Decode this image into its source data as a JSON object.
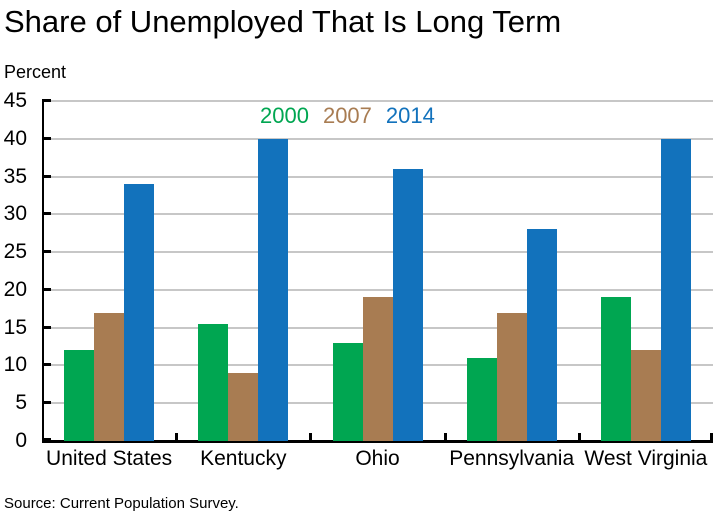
{
  "title": "Share of Unemployed That Is Long Term",
  "unit_label": "Percent",
  "source": "Source: Current Population Survey.",
  "colors": {
    "series_2000": "#00A651",
    "series_2007": "#A87C52",
    "series_2014": "#1272BC",
    "gridline": "#c7c7c7",
    "axis": "#000000",
    "background": "#ffffff"
  },
  "legend": {
    "items": [
      {
        "label": "2000",
        "color": "#00A651"
      },
      {
        "label": "2007",
        "color": "#A87C52"
      },
      {
        "label": "2014",
        "color": "#1272BC"
      }
    ],
    "position": "top-center",
    "style": "text-only"
  },
  "chart_data": {
    "type": "bar",
    "title": "Share of Unemployed That Is Long Term",
    "xlabel": "",
    "ylabel": "Percent",
    "ylim": [
      0,
      45
    ],
    "ytick_step": 5,
    "ytick_labels": [
      "0",
      "5",
      "10",
      "15",
      "20",
      "25",
      "30",
      "35",
      "40",
      "45"
    ],
    "grid": true,
    "legend_position": "top-center",
    "categories": [
      "United States",
      "Kentucky",
      "Ohio",
      "Pennsylvania",
      "West Virginia"
    ],
    "series": [
      {
        "name": "2000",
        "color": "#00A651",
        "values": [
          12,
          15.5,
          13,
          11,
          19
        ]
      },
      {
        "name": "2007",
        "color": "#A87C52",
        "values": [
          17,
          9,
          19,
          17,
          12
        ]
      },
      {
        "name": "2014",
        "color": "#1272BC",
        "values": [
          34,
          40,
          36,
          28,
          40
        ]
      }
    ]
  }
}
